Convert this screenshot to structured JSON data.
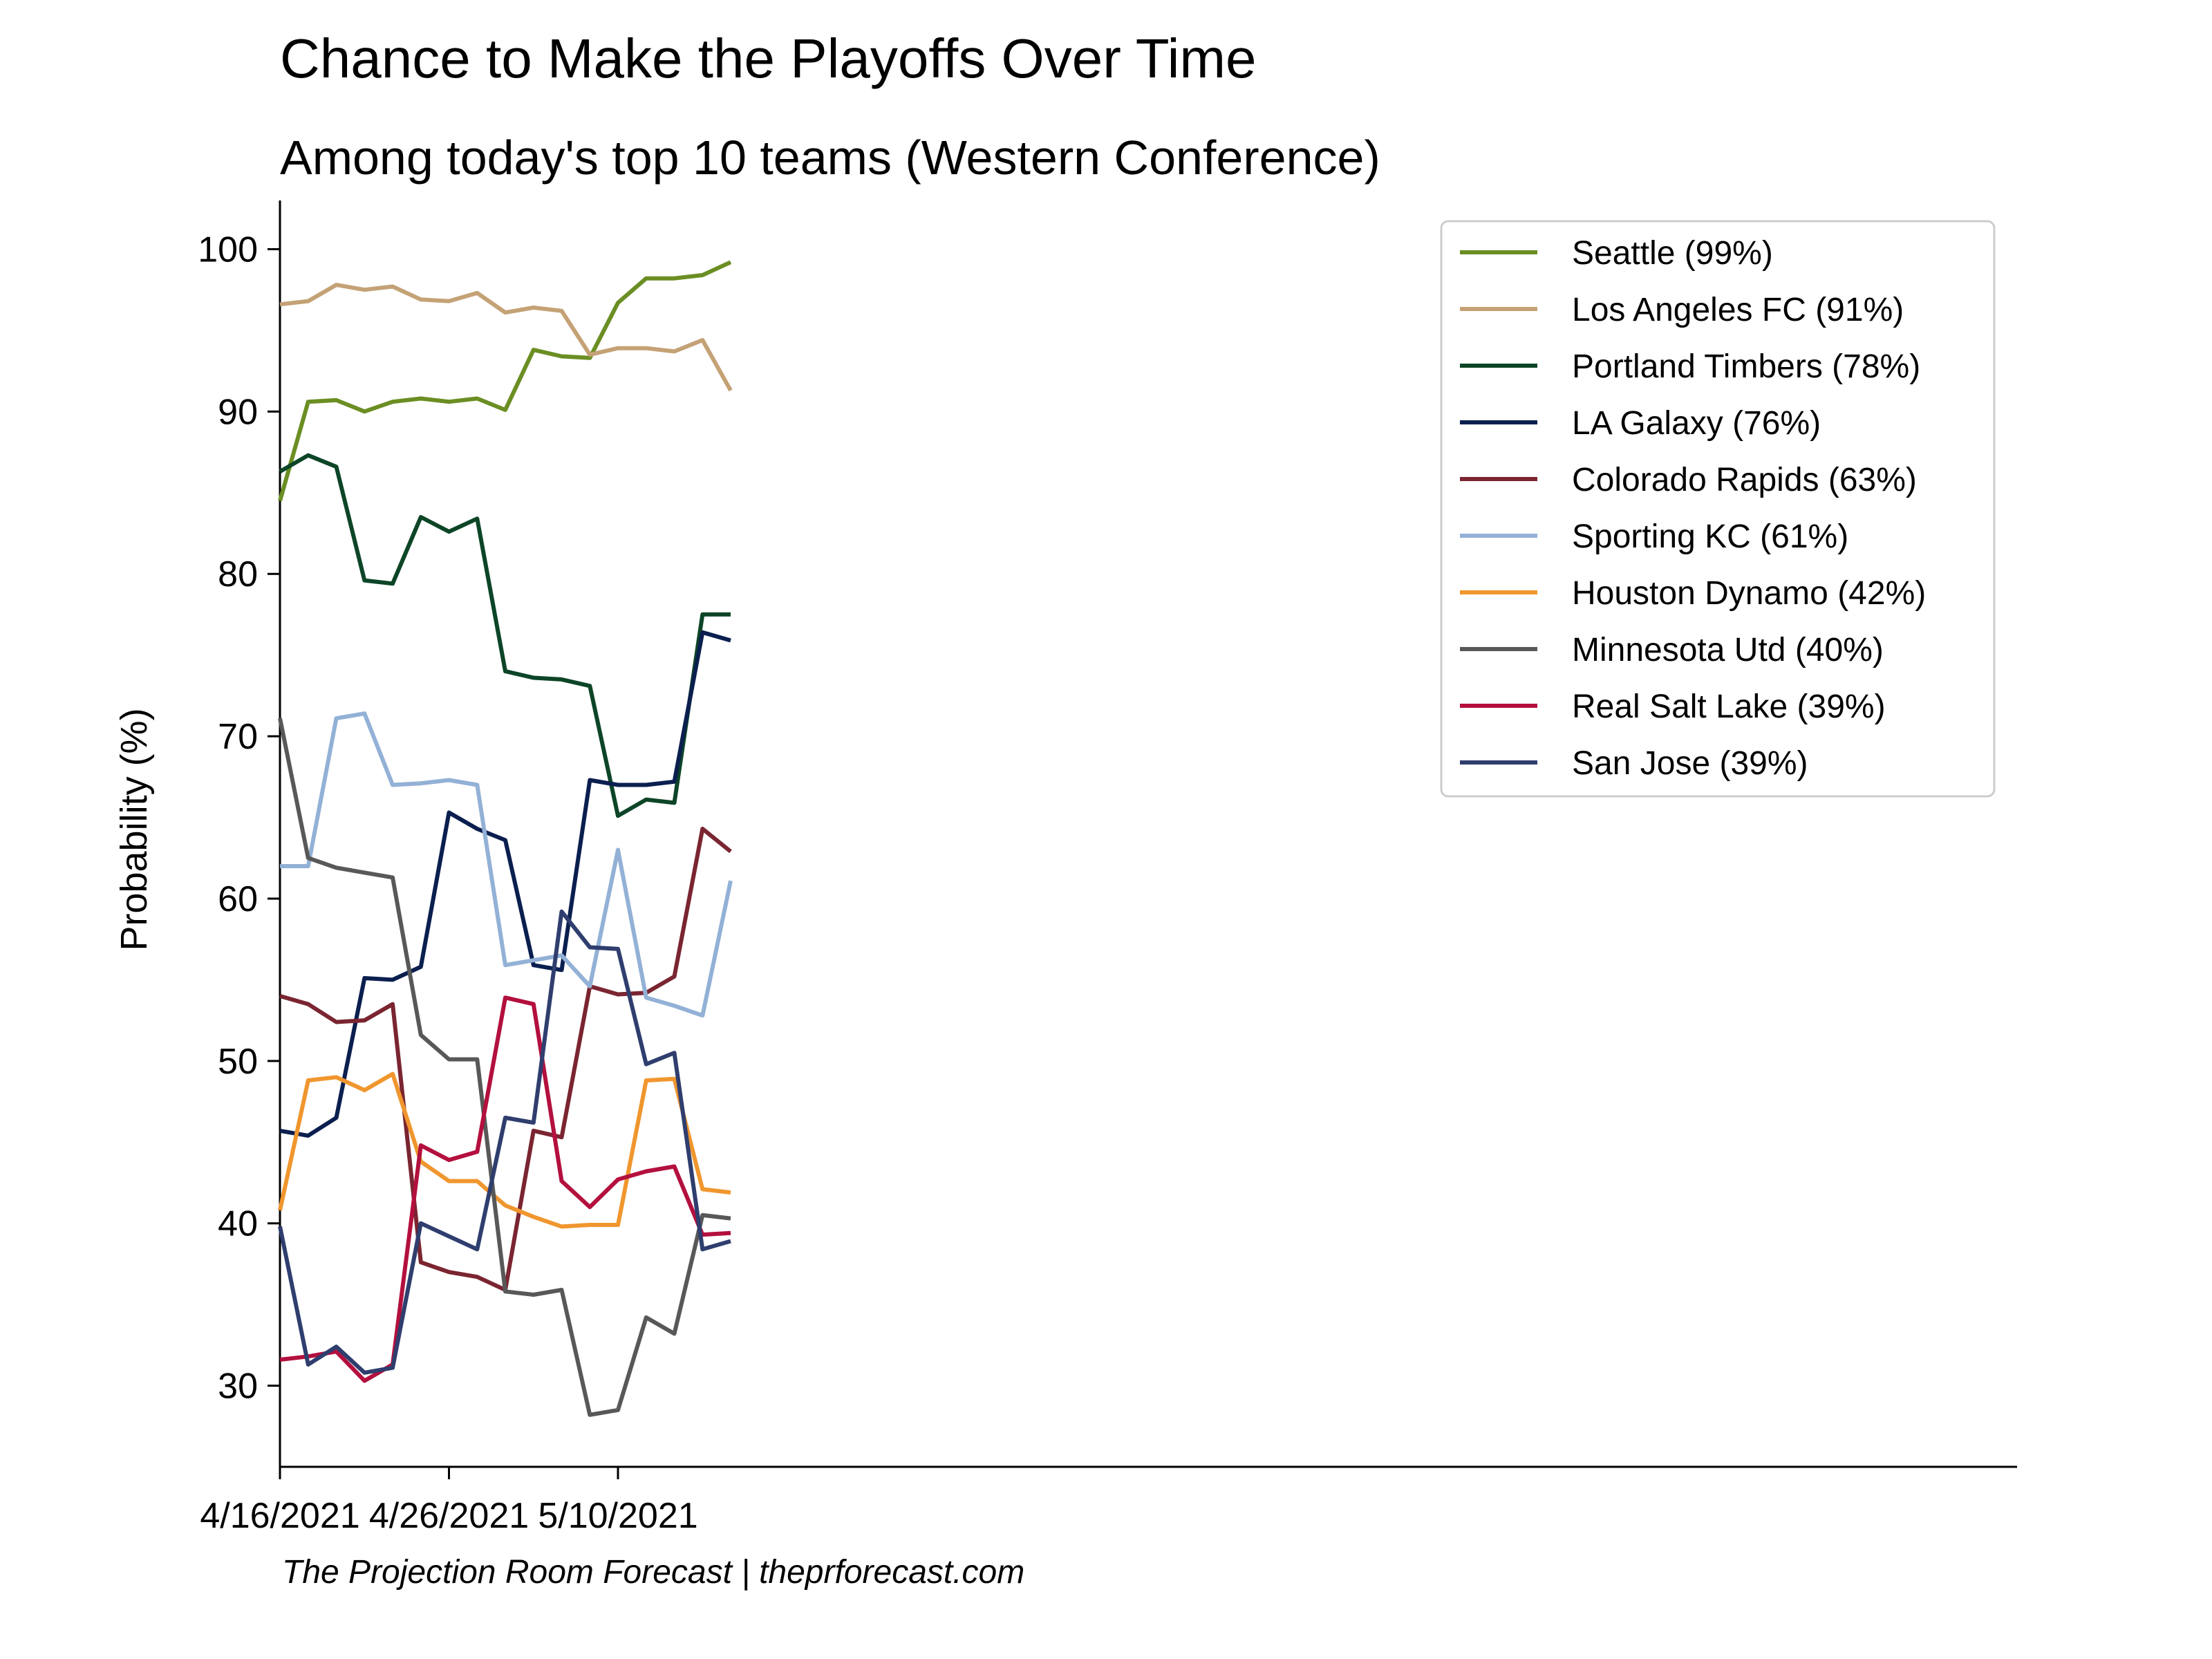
{
  "chart_data": {
    "type": "line",
    "title": "Chance to Make the Playoffs Over Time",
    "subtitle": "Among today's top 10 teams (Western Conference)",
    "ylabel": "Probability (%)",
    "xlabel": "",
    "x_tick_labels": [
      "4/16/2021",
      "4/26/2021",
      "5/10/2021"
    ],
    "x_tick_index": [
      0,
      6,
      12
    ],
    "ylim": [
      25,
      103
    ],
    "xlim": [
      0,
      37
    ],
    "y_ticks": [
      30,
      40,
      50,
      60,
      70,
      80,
      90,
      100
    ],
    "grid": false,
    "legend_position": "top-right",
    "footer": "The Projection Room Forecast | theprforecast.com",
    "series": [
      {
        "name": "Seattle (99%)",
        "color": "#6b8e23",
        "values": [
          84.5,
          90.6,
          90.7,
          90.0,
          90.6,
          90.8,
          90.6,
          90.8,
          90.1,
          93.8,
          93.4,
          93.3,
          96.7,
          98.2,
          98.2,
          98.4,
          99.2
        ]
      },
      {
        "name": "Los Angeles FC (91%)",
        "color": "#c4a276",
        "values": [
          96.6,
          96.8,
          97.8,
          97.5,
          97.7,
          96.9,
          96.8,
          97.3,
          96.1,
          96.4,
          96.2,
          93.5,
          93.9,
          93.9,
          93.7,
          94.4,
          91.3
        ]
      },
      {
        "name": "Portland Timbers (78%)",
        "color": "#0d4527",
        "values": [
          86.3,
          87.3,
          86.6,
          79.6,
          79.4,
          83.5,
          82.6,
          83.4,
          74.0,
          73.6,
          73.5,
          73.1,
          65.1,
          66.1,
          65.9,
          77.5,
          77.5
        ]
      },
      {
        "name": "LA Galaxy (76%)",
        "color": "#0b1f4f",
        "values": [
          45.7,
          45.4,
          46.5,
          55.1,
          55.0,
          55.8,
          65.3,
          64.3,
          63.6,
          55.9,
          55.6,
          67.3,
          67.0,
          67.0,
          67.2,
          76.4,
          75.9
        ]
      },
      {
        "name": "Colorado Rapids (63%)",
        "color": "#7a2531",
        "values": [
          54.0,
          53.5,
          52.4,
          52.5,
          53.5,
          37.6,
          37.0,
          36.7,
          35.9,
          45.7,
          45.3,
          54.6,
          54.1,
          54.2,
          55.2,
          64.3,
          62.9
        ]
      },
      {
        "name": "Sporting KC (61%)",
        "color": "#93b1d6",
        "values": [
          62.0,
          62.0,
          71.1,
          71.4,
          67.0,
          67.1,
          67.3,
          67.0,
          55.9,
          56.2,
          56.5,
          54.6,
          63.0,
          53.9,
          53.4,
          52.8,
          61.1
        ]
      },
      {
        "name": "Houston Dynamo (42%)",
        "color": "#f0962e",
        "values": [
          40.8,
          48.8,
          49.0,
          48.2,
          49.2,
          43.8,
          42.6,
          42.6,
          41.1,
          40.4,
          39.8,
          39.9,
          39.9,
          48.8,
          48.9,
          42.1,
          41.9
        ]
      },
      {
        "name": "Minnesota Utd (40%)",
        "color": "#585858",
        "values": [
          71.1,
          62.5,
          61.9,
          61.6,
          61.3,
          51.6,
          50.1,
          50.1,
          35.8,
          35.6,
          35.9,
          28.2,
          28.5,
          34.2,
          33.2,
          40.5,
          40.3
        ]
      },
      {
        "name": "Real Salt Lake (39%)",
        "color": "#b3103e",
        "values": [
          31.6,
          31.8,
          32.1,
          30.3,
          31.3,
          44.8,
          43.9,
          44.4,
          53.9,
          53.5,
          42.6,
          41.0,
          42.7,
          43.2,
          43.5,
          39.3,
          39.4
        ]
      },
      {
        "name": "San Jose (39%)",
        "color": "#2f3e6e",
        "values": [
          39.8,
          31.3,
          32.4,
          30.8,
          31.1,
          40.0,
          39.2,
          38.4,
          46.5,
          46.2,
          59.2,
          57.0,
          56.9,
          49.8,
          50.5,
          38.4,
          38.9
        ]
      }
    ]
  }
}
